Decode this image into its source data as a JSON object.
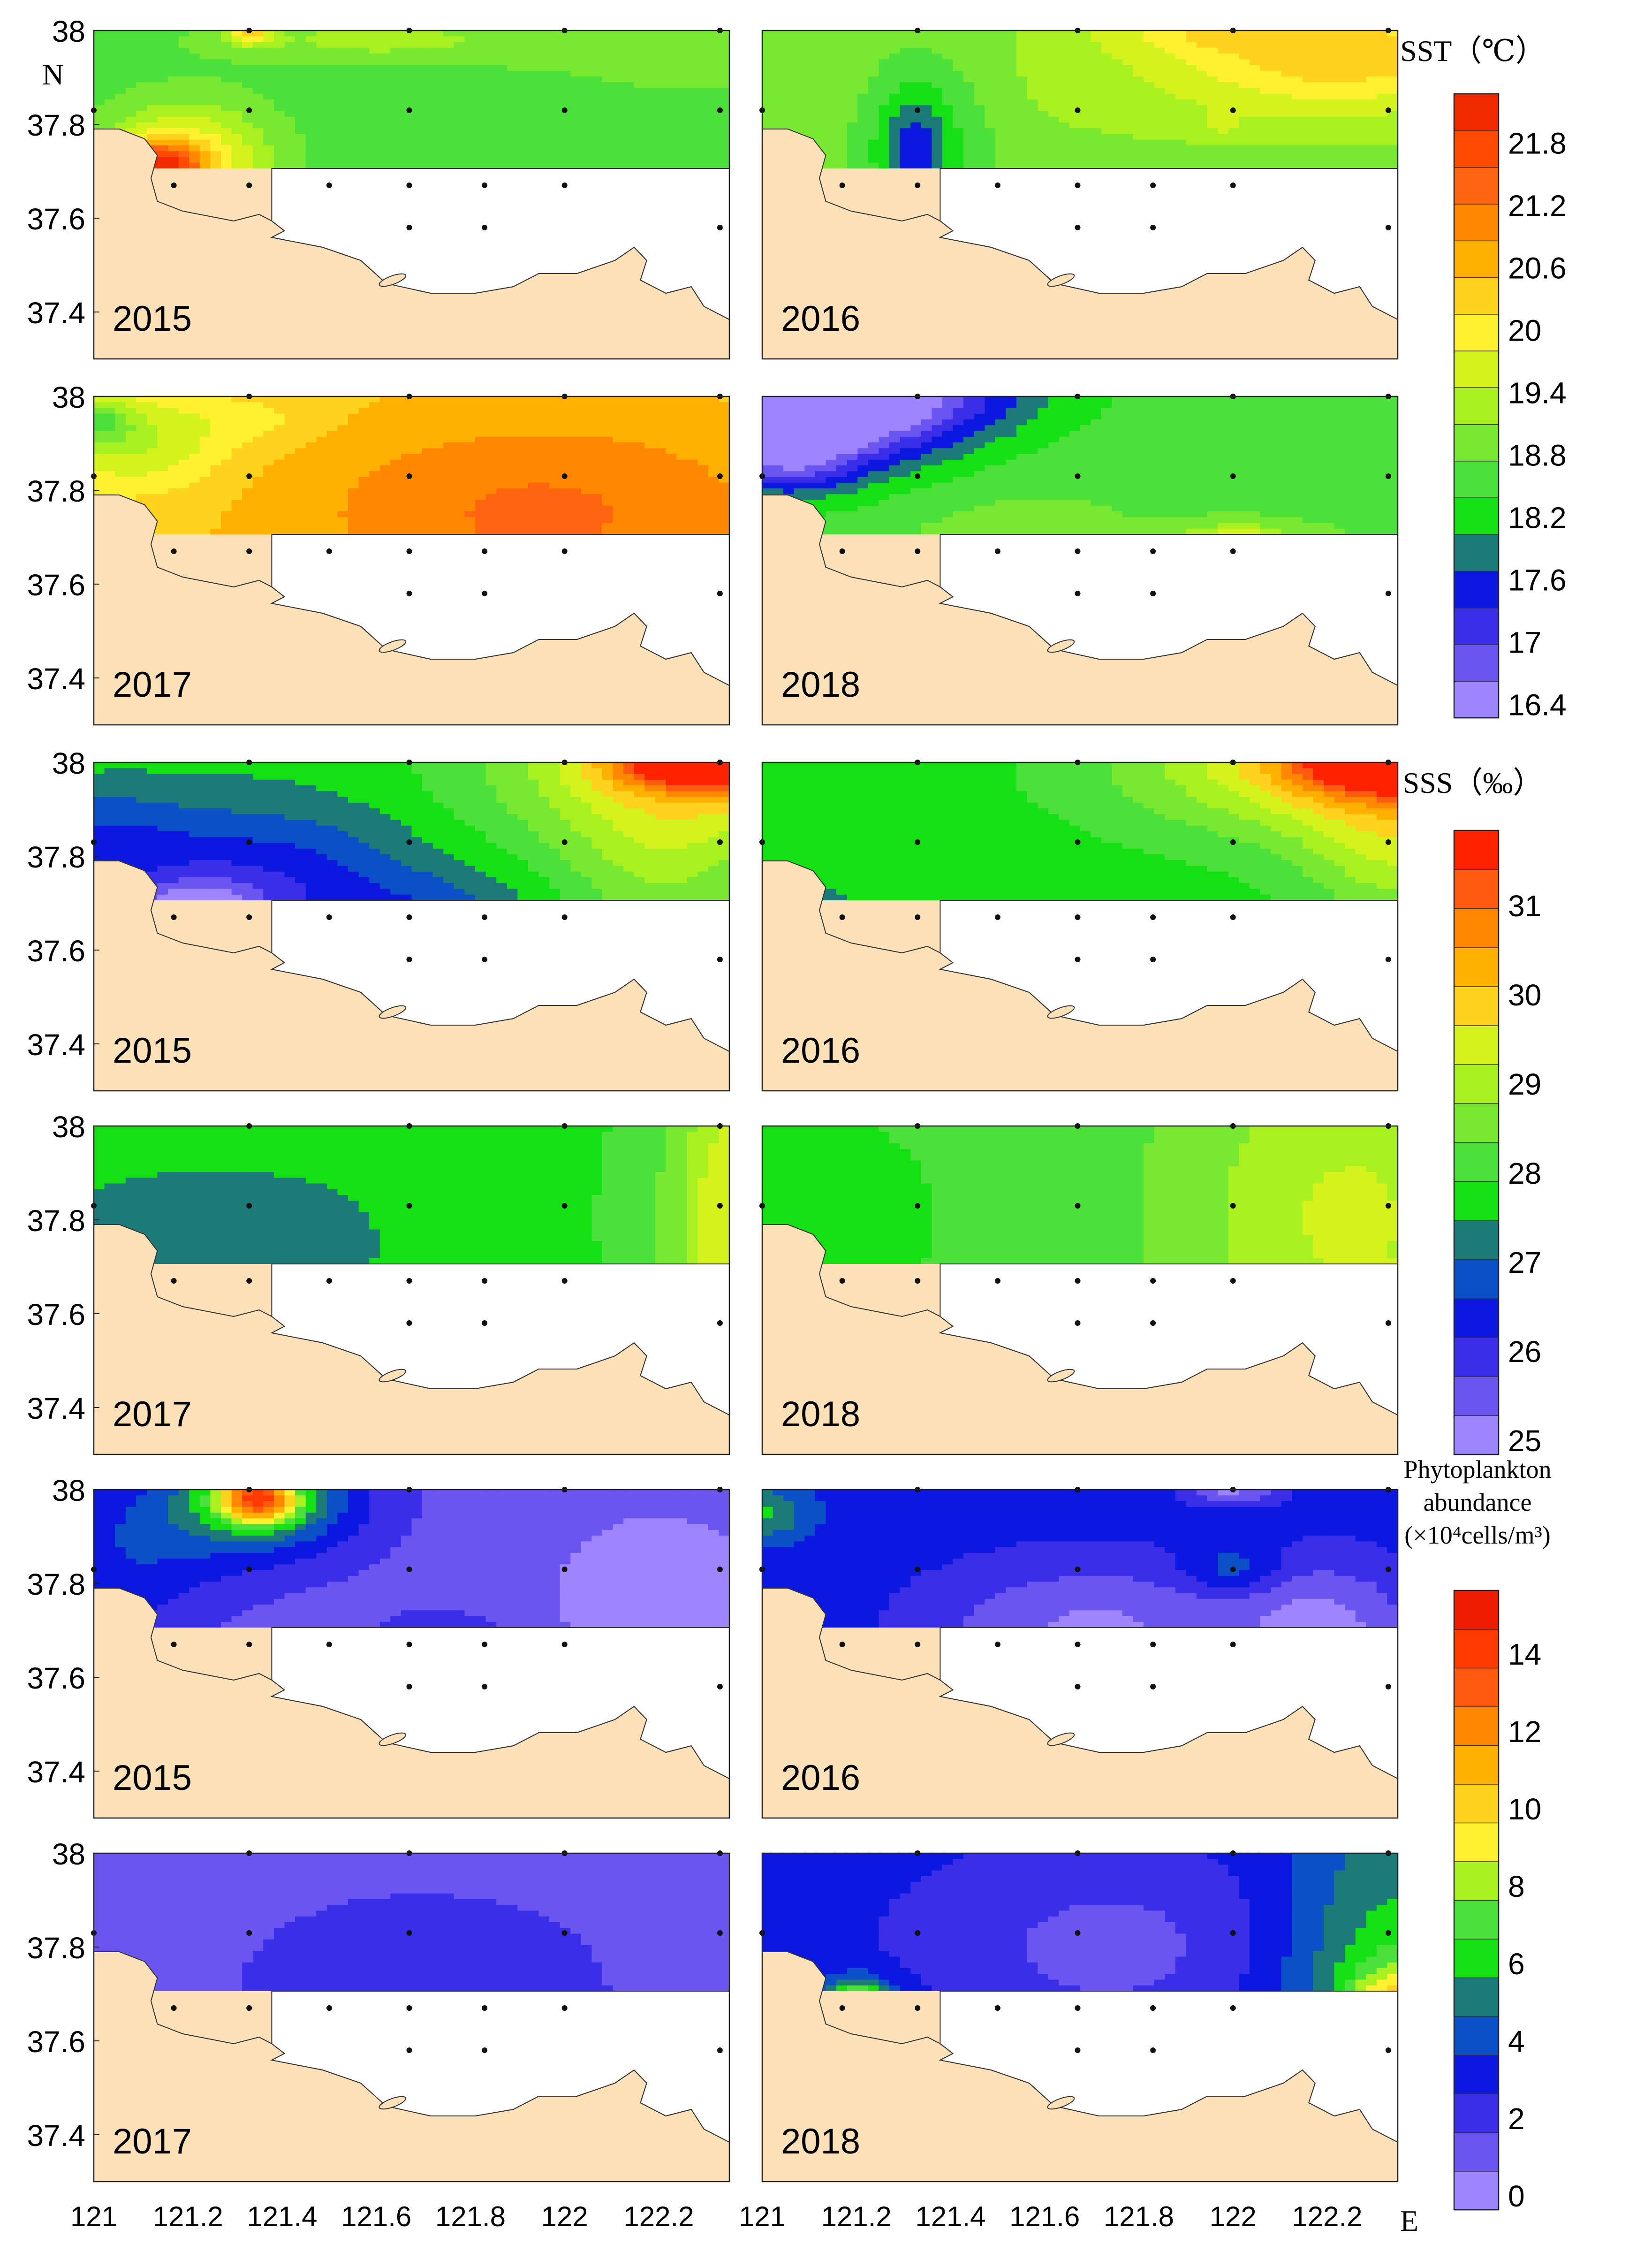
{
  "chart_data": {
    "type": "heatmap",
    "title": "",
    "description_axes": {
      "x_ticks": [
        "121",
        "121.2",
        "121.4",
        "121.6",
        "121.8",
        "122",
        "122.2"
      ],
      "x_unit": "E",
      "y_ticks": [
        "38",
        "37.8",
        "37.6",
        "37.4"
      ],
      "y_unit": "N"
    },
    "xlim": [
      121,
      122.35
    ],
    "ylim": [
      37.3,
      38
    ],
    "land_color": "#fbe0b8",
    "stations": [
      [
        121.33,
        38.0
      ],
      [
        121.67,
        38.0
      ],
      [
        122.0,
        38.0
      ],
      [
        122.33,
        38.0
      ],
      [
        121.0,
        37.83
      ],
      [
        121.33,
        37.83
      ],
      [
        121.67,
        37.83
      ],
      [
        122.0,
        37.83
      ],
      [
        122.33,
        37.83
      ],
      [
        121.17,
        37.67
      ],
      [
        121.33,
        37.67
      ],
      [
        121.5,
        37.67
      ],
      [
        121.67,
        37.67
      ],
      [
        121.83,
        37.67
      ],
      [
        122.0,
        37.67
      ],
      [
        121.67,
        37.58
      ],
      [
        121.83,
        37.58
      ],
      [
        122.33,
        37.58
      ]
    ],
    "variables": [
      {
        "id": "sst",
        "legend_title": "SST（℃）",
        "legend_ticks": [
          "21.8",
          "21.2",
          "20.6",
          "20",
          "19.4",
          "18.8",
          "18.2",
          "17.6",
          "17",
          "16.4"
        ],
        "colors": [
          "#9e84ff",
          "#6a55f0",
          "#3a2ee8",
          "#0c18e0",
          "#1c7a78",
          "#14e014",
          "#4ce03a",
          "#78e830",
          "#a8f020",
          "#d4f31c",
          "#fff030",
          "#ffd21e",
          "#ffb000",
          "#ff8800",
          "#ff6410",
          "#ff4a00",
          "#f22a00"
        ],
        "panels": [
          {
            "year": "2015",
            "base": 6,
            "blobs": [
              [
                121.12,
                37.7,
                0.1,
                0.06,
                15
              ],
              [
                121.2,
                37.72,
                0.17,
                0.12,
                11
              ],
              [
                121.6,
                37.98,
                0.35,
                0.05,
                8
              ],
              [
                121.33,
                38.0,
                0.05,
                0.03,
                11
              ],
              [
                121.52,
                37.67,
                0.05,
                0.03,
                5
              ],
              [
                122.3,
                37.95,
                0.4,
                0.1,
                7
              ]
            ]
          },
          {
            "year": "2016",
            "base": 7,
            "blobs": [
              [
                121.32,
                37.74,
                0.07,
                0.12,
                4
              ],
              [
                121.35,
                37.78,
                0.15,
                0.2,
                5
              ],
              [
                122.25,
                37.95,
                0.35,
                0.12,
                11
              ],
              [
                121.95,
                38.0,
                0.25,
                0.05,
                9
              ],
              [
                121.98,
                37.8,
                0.04,
                0.03,
                8
              ],
              [
                121.9,
                37.9,
                0.6,
                0.15,
                8
              ]
            ]
          },
          {
            "year": "2017",
            "base": 11,
            "blobs": [
              [
                121.95,
                37.75,
                0.55,
                0.22,
                14
              ],
              [
                121.8,
                37.6,
                0.25,
                0.05,
                15
              ],
              [
                121.1,
                37.9,
                0.18,
                0.1,
                8
              ],
              [
                121.0,
                37.95,
                0.08,
                0.05,
                7
              ],
              [
                121.35,
                37.95,
                0.15,
                0.05,
                10
              ]
            ]
          },
          {
            "year": "2018",
            "base": 6,
            "blobs": [
              [
                121.08,
                38.0,
                0.35,
                0.18,
                1
              ],
              [
                121.2,
                37.97,
                0.25,
                0.1,
                3
              ],
              [
                121.35,
                38.0,
                0.3,
                0.08,
                4
              ],
              [
                121.05,
                37.88,
                0.15,
                0.08,
                2
              ],
              [
                122.05,
                37.65,
                0.2,
                0.07,
                9
              ],
              [
                122.0,
                37.67,
                0.08,
                0.04,
                12
              ],
              [
                121.5,
                37.72,
                0.35,
                0.12,
                7
              ]
            ]
          }
        ]
      },
      {
        "id": "sss",
        "legend_title": "SSS（‰）",
        "legend_ticks": [
          "31",
          "30",
          "29",
          "28",
          "27",
          "26",
          "25"
        ],
        "colors": [
          "#9e84ff",
          "#6a55f0",
          "#3a2ee8",
          "#0c18e0",
          "#0c50c8",
          "#1c7a78",
          "#14e014",
          "#4ce03a",
          "#78e830",
          "#a8f020",
          "#d4f31c",
          "#ffd21e",
          "#ffb000",
          "#ff8800",
          "#ff5a10",
          "#ff2200"
        ],
        "panels": [
          {
            "year": "2015",
            "base": 6,
            "blobs": [
              [
                121.2,
                37.66,
                0.14,
                0.08,
                0
              ],
              [
                121.35,
                37.72,
                0.35,
                0.18,
                2
              ],
              [
                121.75,
                37.65,
                0.2,
                0.1,
                4
              ],
              [
                121.0,
                37.85,
                0.2,
                0.1,
                4
              ],
              [
                122.3,
                37.98,
                0.45,
                0.18,
                11
              ],
              [
                122.3,
                38.0,
                0.2,
                0.06,
                14
              ],
              [
                122.2,
                37.75,
                0.2,
                0.2,
                8
              ]
            ]
          },
          {
            "year": "2016",
            "base": 6,
            "blobs": [
              [
                121.1,
                37.68,
                0.12,
                0.07,
                5
              ],
              [
                122.3,
                38.0,
                0.5,
                0.16,
                12
              ],
              [
                122.35,
                38.0,
                0.22,
                0.07,
                14
              ],
              [
                122.35,
                37.8,
                0.2,
                0.15,
                9
              ],
              [
                121.5,
                37.75,
                0.5,
                0.15,
                6
              ]
            ]
          },
          {
            "year": "2017",
            "base": 6,
            "blobs": [
              [
                121.15,
                37.75,
                0.35,
                0.18,
                5
              ],
              [
                121.4,
                37.75,
                0.2,
                0.12,
                5
              ],
              [
                122.35,
                37.8,
                0.25,
                0.4,
                8
              ],
              [
                122.35,
                37.8,
                0.1,
                0.4,
                9
              ]
            ]
          },
          {
            "year": "2018",
            "base": 7,
            "blobs": [
              [
                121.1,
                37.8,
                0.35,
                0.3,
                6
              ],
              [
                122.25,
                37.8,
                0.35,
                0.4,
                10
              ],
              [
                122.35,
                37.62,
                0.05,
                0.05,
                12
              ]
            ]
          }
        ]
      },
      {
        "id": "phyto",
        "legend_title_lines": [
          "Phytoplankton",
          "abundance",
          "(×10⁴cells/m³)"
        ],
        "legend_ticks": [
          "14",
          "12",
          "10",
          "8",
          "6",
          "4",
          "2",
          "0"
        ],
        "colors": [
          "#9e84ff",
          "#6a55f0",
          "#3a2ee8",
          "#0c18e0",
          "#0c50c8",
          "#1c7a78",
          "#14e014",
          "#4ce03a",
          "#a8f020",
          "#fff030",
          "#ffd21e",
          "#ffb000",
          "#ff8800",
          "#ff5a10",
          "#ff3a00",
          "#ee1c00"
        ],
        "panels": [
          {
            "year": "2015",
            "base": 1,
            "blobs": [
              [
                121.35,
                37.98,
                0.08,
                0.05,
                10
              ],
              [
                121.35,
                37.98,
                0.2,
                0.1,
                5
              ],
              [
                121.3,
                37.95,
                0.3,
                0.15,
                3
              ],
              [
                121.05,
                37.82,
                0.2,
                0.18,
                3
              ],
              [
                121.75,
                37.58,
                0.08,
                0.05,
                6
              ],
              [
                121.75,
                37.62,
                0.15,
                0.1,
                4
              ],
              [
                122.2,
                37.75,
                0.3,
                0.25,
                0
              ]
            ]
          },
          {
            "year": "2016",
            "base": 3,
            "blobs": [
              [
                121.7,
                37.7,
                0.35,
                0.15,
                0
              ],
              [
                122.2,
                37.7,
                0.2,
                0.15,
                0
              ],
              [
                122.0,
                37.83,
                0.1,
                0.05,
                5
              ],
              [
                121.0,
                37.95,
                0.1,
                0.06,
                6
              ],
              [
                122.0,
                38.0,
                0.1,
                0.03,
                0
              ]
            ]
          },
          {
            "year": "2017",
            "base": 1,
            "blobs": [
              [
                121.7,
                37.72,
                0.5,
                0.25,
                2
              ],
              [
                121.8,
                37.72,
                0.08,
                0.06,
                1
              ],
              [
                122.0,
                37.67,
                0.05,
                0.03,
                4
              ]
            ]
          },
          {
            "year": "2018",
            "base": 3,
            "blobs": [
              [
                121.75,
                37.8,
                0.45,
                0.22,
                1
              ],
              [
                121.2,
                37.68,
                0.05,
                0.04,
                8
              ],
              [
                121.2,
                37.68,
                0.1,
                0.06,
                6
              ],
              [
                122.35,
                37.7,
                0.25,
                0.4,
                7
              ],
              [
                122.35,
                37.65,
                0.1,
                0.1,
                9
              ],
              [
                122.05,
                37.85,
                0.2,
                0.25,
                3
              ]
            ]
          }
        ]
      }
    ]
  }
}
